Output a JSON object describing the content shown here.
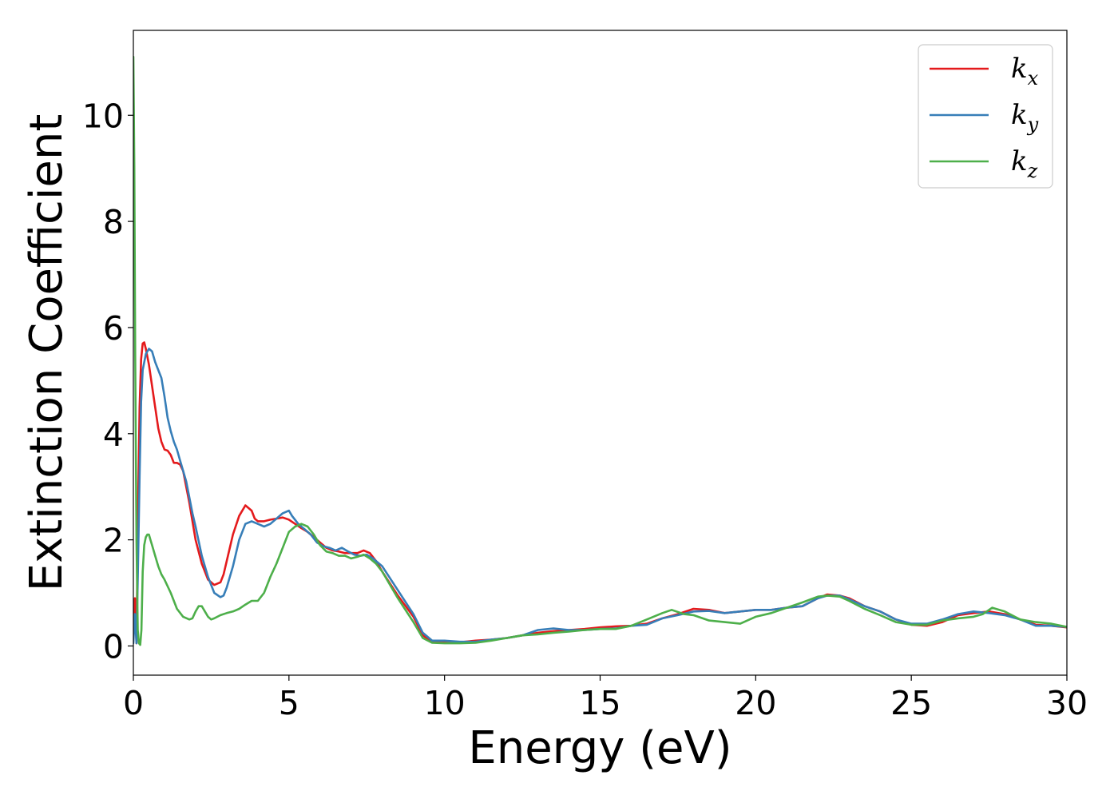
{
  "chart_data": {
    "type": "line",
    "title": "",
    "xlabel": "Energy (eV)",
    "ylabel": "Extinction Coefficient",
    "xlim": [
      0,
      30
    ],
    "ylim": [
      -0.55,
      11.6
    ],
    "xticks": [
      0,
      5,
      10,
      15,
      20,
      25,
      30
    ],
    "yticks": [
      0,
      2,
      4,
      6,
      8,
      10
    ],
    "grid": false,
    "legend": {
      "position": "top-right"
    },
    "series": [
      {
        "name": "k_x",
        "label_base": "k",
        "label_sub": "x",
        "color": "#e41a1c",
        "x": [
          0,
          0.05,
          0.1,
          0.15,
          0.2,
          0.25,
          0.3,
          0.35,
          0.4,
          0.5,
          0.6,
          0.7,
          0.8,
          0.9,
          1.0,
          1.1,
          1.2,
          1.3,
          1.4,
          1.5,
          1.6,
          1.7,
          1.8,
          1.9,
          2.0,
          2.2,
          2.4,
          2.6,
          2.8,
          2.9,
          3.0,
          3.2,
          3.4,
          3.6,
          3.8,
          3.9,
          4.0,
          4.2,
          4.4,
          4.6,
          4.8,
          5.0,
          5.2,
          5.4,
          5.6,
          5.8,
          6.0,
          6.2,
          6.4,
          6.6,
          6.8,
          7.0,
          7.2,
          7.4,
          7.6,
          7.8,
          8.0,
          8.5,
          9.0,
          9.3,
          9.6,
          10.0,
          10.5,
          11.0,
          11.5,
          12.0,
          12.5,
          13.0,
          13.5,
          14.0,
          14.5,
          15.0,
          15.5,
          16.0,
          16.5,
          17.0,
          17.5,
          18.0,
          18.5,
          19.0,
          19.5,
          20.0,
          20.5,
          21.0,
          21.5,
          22.0,
          22.3,
          22.7,
          23.0,
          23.5,
          24.0,
          24.5,
          25.0,
          25.5,
          26.0,
          26.5,
          27.0,
          27.5,
          28.0,
          28.5,
          29.0,
          29.5,
          30.0
        ],
        "y": [
          0.1,
          0.9,
          0.05,
          2.5,
          4.5,
          5.4,
          5.7,
          5.72,
          5.6,
          5.3,
          4.9,
          4.5,
          4.1,
          3.85,
          3.7,
          3.68,
          3.6,
          3.45,
          3.45,
          3.42,
          3.3,
          3.0,
          2.7,
          2.35,
          2.0,
          1.55,
          1.25,
          1.15,
          1.2,
          1.35,
          1.6,
          2.1,
          2.45,
          2.65,
          2.55,
          2.4,
          2.35,
          2.35,
          2.38,
          2.4,
          2.42,
          2.38,
          2.3,
          2.22,
          2.15,
          2.05,
          1.95,
          1.85,
          1.8,
          1.78,
          1.75,
          1.75,
          1.75,
          1.8,
          1.75,
          1.6,
          1.4,
          0.95,
          0.55,
          0.2,
          0.08,
          0.08,
          0.07,
          0.1,
          0.12,
          0.15,
          0.2,
          0.25,
          0.28,
          0.3,
          0.32,
          0.35,
          0.37,
          0.38,
          0.42,
          0.52,
          0.6,
          0.7,
          0.68,
          0.62,
          0.65,
          0.68,
          0.68,
          0.72,
          0.75,
          0.9,
          0.97,
          0.95,
          0.9,
          0.75,
          0.65,
          0.5,
          0.4,
          0.38,
          0.45,
          0.58,
          0.62,
          0.65,
          0.6,
          0.5,
          0.4,
          0.38,
          0.35
        ]
      },
      {
        "name": "k_y",
        "label_base": "k",
        "label_sub": "y",
        "color": "#377eb8",
        "x": [
          0,
          0.05,
          0.1,
          0.15,
          0.2,
          0.25,
          0.3,
          0.4,
          0.5,
          0.6,
          0.7,
          0.8,
          0.9,
          1.0,
          1.1,
          1.2,
          1.3,
          1.4,
          1.5,
          1.6,
          1.7,
          1.8,
          1.9,
          2.0,
          2.2,
          2.4,
          2.6,
          2.8,
          2.9,
          3.0,
          3.2,
          3.4,
          3.6,
          3.8,
          4.0,
          4.2,
          4.4,
          4.6,
          4.8,
          5.0,
          5.1,
          5.3,
          5.5,
          5.7,
          5.9,
          6.1,
          6.3,
          6.5,
          6.7,
          6.9,
          7.1,
          7.3,
          7.5,
          7.7,
          8.0,
          8.5,
          9.0,
          9.3,
          9.6,
          10.0,
          10.5,
          11.0,
          11.5,
          12.0,
          12.5,
          13.0,
          13.5,
          14.0,
          14.5,
          15.0,
          15.5,
          16.0,
          16.5,
          17.0,
          17.5,
          18.0,
          18.5,
          19.0,
          19.5,
          20.0,
          20.5,
          21.0,
          21.5,
          22.0,
          22.3,
          22.7,
          23.0,
          23.5,
          24.0,
          24.5,
          25.0,
          25.5,
          26.0,
          26.5,
          27.0,
          27.5,
          28.0,
          28.5,
          29.0,
          29.5,
          30.0
        ],
        "y": [
          0.05,
          0.6,
          0.05,
          1.5,
          3.2,
          4.6,
          5.2,
          5.5,
          5.6,
          5.55,
          5.35,
          5.2,
          5.05,
          4.7,
          4.3,
          4.05,
          3.85,
          3.7,
          3.5,
          3.3,
          3.1,
          2.8,
          2.5,
          2.25,
          1.7,
          1.3,
          1.0,
          0.92,
          0.95,
          1.1,
          1.5,
          2.0,
          2.3,
          2.35,
          2.3,
          2.25,
          2.3,
          2.4,
          2.5,
          2.55,
          2.45,
          2.3,
          2.2,
          2.1,
          1.95,
          1.88,
          1.85,
          1.8,
          1.85,
          1.78,
          1.72,
          1.7,
          1.72,
          1.65,
          1.5,
          1.05,
          0.6,
          0.25,
          0.1,
          0.1,
          0.08,
          0.08,
          0.12,
          0.15,
          0.2,
          0.3,
          0.33,
          0.3,
          0.3,
          0.32,
          0.33,
          0.38,
          0.4,
          0.52,
          0.58,
          0.65,
          0.66,
          0.62,
          0.65,
          0.68,
          0.68,
          0.72,
          0.75,
          0.9,
          0.95,
          0.95,
          0.88,
          0.75,
          0.65,
          0.5,
          0.42,
          0.42,
          0.5,
          0.6,
          0.65,
          0.62,
          0.58,
          0.5,
          0.38,
          0.38,
          0.36
        ]
      },
      {
        "name": "k_z",
        "label_base": "k",
        "label_sub": "z",
        "color": "#4daf4a",
        "x": [
          0,
          0.03,
          0.06,
          0.1,
          0.14,
          0.18,
          0.22,
          0.26,
          0.3,
          0.35,
          0.4,
          0.45,
          0.5,
          0.55,
          0.6,
          0.7,
          0.8,
          0.9,
          1.0,
          1.2,
          1.4,
          1.6,
          1.8,
          1.9,
          2.0,
          2.1,
          2.2,
          2.3,
          2.4,
          2.5,
          2.6,
          2.8,
          3.0,
          3.2,
          3.4,
          3.6,
          3.8,
          4.0,
          4.2,
          4.4,
          4.6,
          4.8,
          5.0,
          5.2,
          5.4,
          5.6,
          5.8,
          6.0,
          6.2,
          6.4,
          6.6,
          6.8,
          7.0,
          7.2,
          7.4,
          7.6,
          7.8,
          8.0,
          8.5,
          9.0,
          9.3,
          9.6,
          10.0,
          10.5,
          11.0,
          11.5,
          12.0,
          12.5,
          13.0,
          13.5,
          14.0,
          14.5,
          15.0,
          15.5,
          16.0,
          16.5,
          17.0,
          17.3,
          17.7,
          18.0,
          18.5,
          19.0,
          19.5,
          20.0,
          20.5,
          21.0,
          21.5,
          22.0,
          22.3,
          22.7,
          23.0,
          23.5,
          24.0,
          24.5,
          25.0,
          25.5,
          26.0,
          26.5,
          27.0,
          27.3,
          27.6,
          28.0,
          28.5,
          29.0,
          29.5,
          30.0
        ],
        "y": [
          11.1,
          9.0,
          5.5,
          2.0,
          0.3,
          0.05,
          0.02,
          0.3,
          1.4,
          1.9,
          2.05,
          2.1,
          2.1,
          2.0,
          1.9,
          1.7,
          1.5,
          1.35,
          1.25,
          1.0,
          0.7,
          0.55,
          0.5,
          0.52,
          0.65,
          0.75,
          0.75,
          0.65,
          0.55,
          0.5,
          0.52,
          0.58,
          0.62,
          0.65,
          0.7,
          0.78,
          0.85,
          0.85,
          1.0,
          1.3,
          1.55,
          1.85,
          2.15,
          2.25,
          2.3,
          2.25,
          2.1,
          1.9,
          1.78,
          1.75,
          1.7,
          1.7,
          1.65,
          1.68,
          1.72,
          1.65,
          1.55,
          1.4,
          0.9,
          0.45,
          0.15,
          0.06,
          0.05,
          0.05,
          0.06,
          0.1,
          0.15,
          0.2,
          0.22,
          0.25,
          0.27,
          0.3,
          0.32,
          0.32,
          0.38,
          0.5,
          0.62,
          0.68,
          0.6,
          0.58,
          0.48,
          0.45,
          0.42,
          0.55,
          0.62,
          0.72,
          0.82,
          0.93,
          0.95,
          0.93,
          0.85,
          0.7,
          0.58,
          0.45,
          0.4,
          0.4,
          0.48,
          0.52,
          0.55,
          0.6,
          0.72,
          0.65,
          0.5,
          0.45,
          0.42,
          0.36
        ]
      }
    ]
  }
}
